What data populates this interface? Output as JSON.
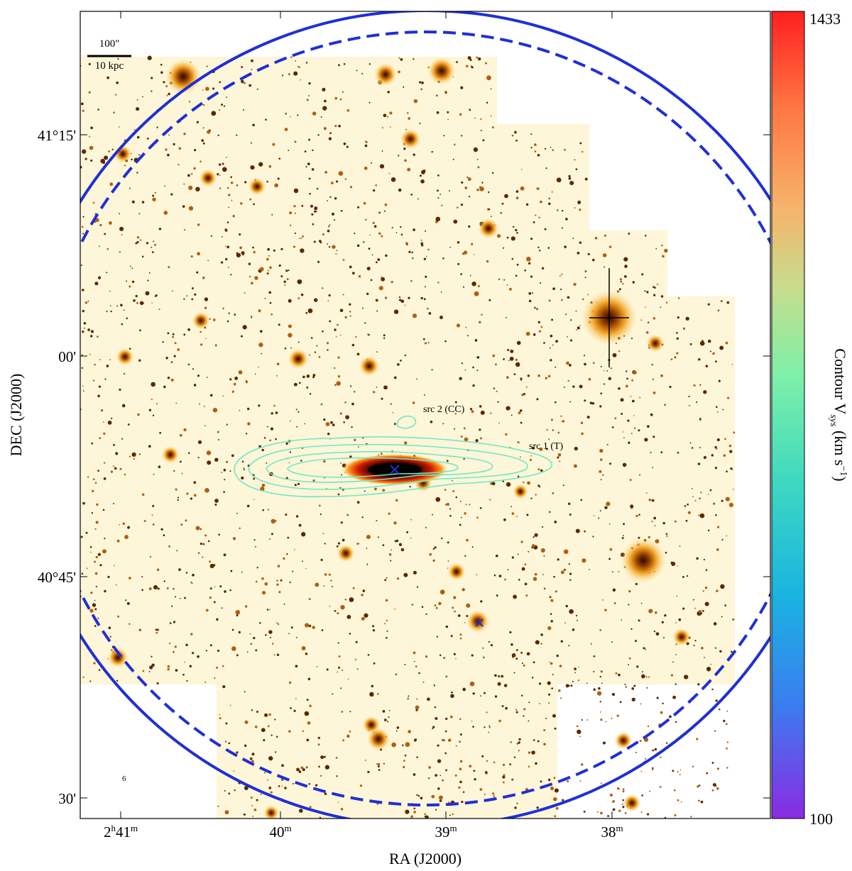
{
  "figure": {
    "colorbar": {
      "max_label": "1433",
      "min_label": "100",
      "title_main": "Contour V",
      "title_sub": "sys",
      "title_unit_pre": " (km s",
      "title_unit_exp": "−1",
      "title_unit_post": ")",
      "colors": [
        "#8a2be2",
        "#3a7cf0",
        "#19b5e0",
        "#3fd9c0",
        "#7ff0a8",
        "#c8dc8c",
        "#f7b26a",
        "#ff7744",
        "#ff1f1f"
      ]
    },
    "axes": {
      "xlabel": "RA (J2000)",
      "ylabel": "DEC (J2000)",
      "x_ticks": [
        {
          "main": "2",
          "sup1": "h",
          "main2": "41",
          "sup2": "m"
        },
        {
          "main": "40",
          "sup": "m"
        },
        {
          "main": "39",
          "sup": "m"
        },
        {
          "main": "38",
          "sup": "m"
        }
      ],
      "y_ticks": [
        "41°15'",
        "00'",
        "40°45'",
        "30'"
      ]
    },
    "scale_bar": {
      "top": "100\"",
      "bottom": "10 kpc"
    },
    "annotations": {
      "src1": "src 1 (T)",
      "src2": "src 2 (CC)",
      "small_mark": "6"
    },
    "colors": {
      "circle": "#1f2fd6",
      "contour": "#6ee8c8",
      "background_field": "#fdf7dc",
      "marker": "#1f2fd6"
    }
  }
}
